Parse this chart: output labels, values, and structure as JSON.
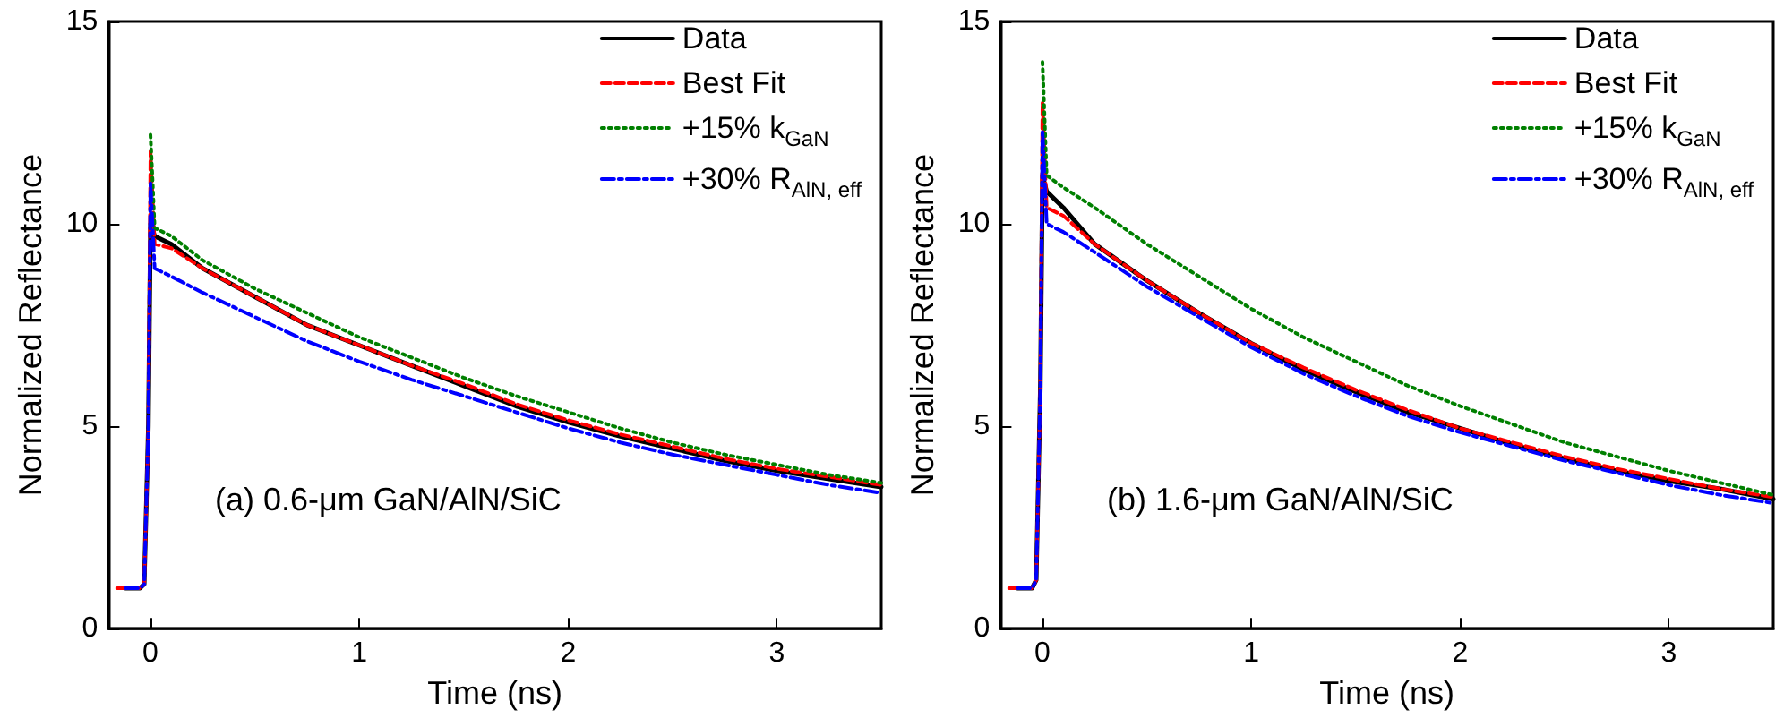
{
  "chart_data": [
    {
      "type": "line",
      "xlabel": "Time (ns)",
      "ylabel": "Normalized Reflectance",
      "xlim": [
        -0.2,
        3.5
      ],
      "xticks": [
        0,
        1,
        2,
        3
      ],
      "ylim": [
        0,
        15
      ],
      "yticks": [
        0,
        5,
        10,
        15
      ],
      "grid": false,
      "legend": "top right",
      "marker": "none",
      "annotations": [
        "(a) 0.6-μm GaN/AlN/SiC"
      ],
      "x": [
        -0.12,
        -0.05,
        -0.03,
        -0.01,
        0,
        0.02,
        0.1,
        0.25,
        0.5,
        0.75,
        1,
        1.25,
        1.5,
        1.75,
        2,
        2.25,
        2.5,
        2.75,
        3,
        3.25,
        3.5
      ],
      "series": [
        {
          "name": "Data",
          "color": "#000000",
          "line_style": "solid",
          "values": [
            1,
            1,
            1.1,
            5,
            10,
            9.7,
            9.5,
            8.9,
            8.2,
            7.5,
            7.0,
            6.5,
            6.0,
            5.5,
            5.1,
            4.75,
            4.45,
            4.15,
            3.9,
            3.7,
            3.5
          ]
        },
        {
          "name": "Best Fit",
          "color": "#ff0000",
          "line_style": "dashed",
          "x": [
            -0.16,
            -0.05,
            -0.03,
            -0.01,
            0,
            0.02,
            0.1,
            0.25,
            0.5,
            0.75,
            1,
            1.25,
            1.5,
            1.75,
            2,
            2.25,
            2.5,
            2.75,
            3,
            3.25,
            3.5
          ],
          "values": [
            1,
            1,
            1.1,
            5,
            11.8,
            9.5,
            9.4,
            8.9,
            8.2,
            7.5,
            7.0,
            6.5,
            6.05,
            5.55,
            5.15,
            4.8,
            4.5,
            4.2,
            3.95,
            3.75,
            3.55
          ]
        },
        {
          "name": "+15% k$_{GaN}$",
          "color": "#008000",
          "line_style": "dotted",
          "values": [
            null,
            null,
            null,
            null,
            12.2,
            9.9,
            9.7,
            9.1,
            8.4,
            7.8,
            7.2,
            6.7,
            6.2,
            5.75,
            5.35,
            4.95,
            4.6,
            4.3,
            4.05,
            3.8,
            3.6
          ]
        },
        {
          "name": "+30% R$_{AlN, eff}$",
          "color": "#0000ff",
          "line_style": "dashdot",
          "values": [
            1,
            1,
            1.1,
            5,
            11.0,
            8.9,
            8.7,
            8.3,
            7.7,
            7.1,
            6.6,
            6.15,
            5.75,
            5.35,
            4.95,
            4.6,
            4.3,
            4.05,
            3.8,
            3.55,
            3.35
          ]
        }
      ]
    },
    {
      "type": "line",
      "xlabel": "Time (ns)",
      "ylabel": "Normalized Reflectance",
      "xlim": [
        -0.2,
        3.5
      ],
      "xticks": [
        0,
        1,
        2,
        3
      ],
      "ylim": [
        0,
        15
      ],
      "yticks": [
        0,
        5,
        10,
        15
      ],
      "grid": false,
      "legend": "top right",
      "marker": "none",
      "annotations": [
        "(b) 1.6-μm GaN/AlN/SiC"
      ],
      "x": [
        -0.12,
        -0.05,
        -0.03,
        -0.01,
        0,
        0.02,
        0.1,
        0.25,
        0.5,
        0.75,
        1,
        1.25,
        1.5,
        1.75,
        2,
        2.25,
        2.5,
        2.75,
        3,
        3.25,
        3.5
      ],
      "series": [
        {
          "name": "Data",
          "color": "#000000",
          "line_style": "solid",
          "values": [
            1,
            1,
            1.2,
            6,
            11.2,
            10.8,
            10.4,
            9.5,
            8.6,
            7.8,
            7.05,
            6.4,
            5.85,
            5.35,
            4.95,
            4.55,
            4.2,
            3.9,
            3.65,
            3.45,
            3.2
          ]
        },
        {
          "name": "Best Fit",
          "color": "#ff0000",
          "line_style": "dashed",
          "x": [
            -0.16,
            -0.05,
            -0.03,
            -0.01,
            0,
            0.02,
            0.1,
            0.25,
            0.5,
            0.75,
            1,
            1.25,
            1.5,
            1.75,
            2,
            2.25,
            2.5,
            2.75,
            3,
            3.25,
            3.5
          ],
          "values": [
            1,
            1,
            1.2,
            6,
            13.0,
            10.4,
            10.2,
            9.5,
            8.6,
            7.8,
            7.05,
            6.45,
            5.9,
            5.4,
            4.95,
            4.6,
            4.25,
            3.95,
            3.7,
            3.45,
            3.25
          ]
        },
        {
          "name": "+15% k$_{GaN}$",
          "color": "#008000",
          "line_style": "dotted",
          "values": [
            null,
            null,
            null,
            null,
            14.0,
            11.2,
            10.9,
            10.4,
            9.5,
            8.7,
            7.9,
            7.2,
            6.6,
            6.0,
            5.5,
            5.05,
            4.6,
            4.25,
            3.9,
            3.6,
            3.3
          ]
        },
        {
          "name": "+30% R$_{AlN, eff}$",
          "color": "#0000ff",
          "line_style": "dashdot",
          "values": [
            1,
            1,
            1.2,
            6,
            12.3,
            10.0,
            9.8,
            9.3,
            8.45,
            7.7,
            6.95,
            6.3,
            5.75,
            5.25,
            4.85,
            4.5,
            4.15,
            3.85,
            3.55,
            3.3,
            3.1
          ]
        }
      ]
    }
  ]
}
